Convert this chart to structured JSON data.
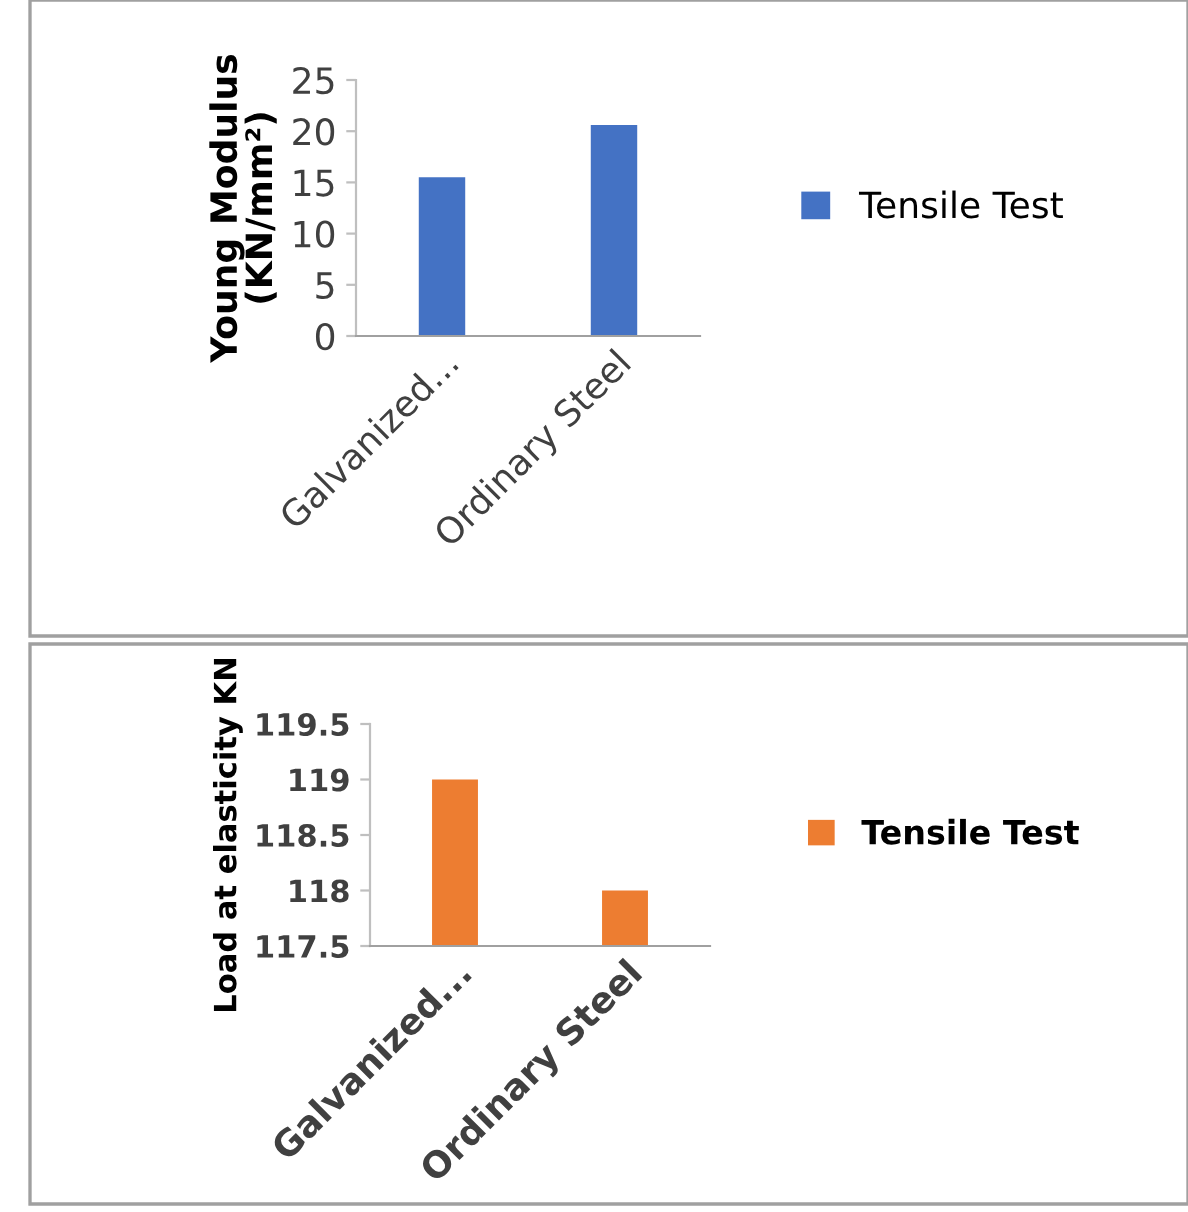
{
  "chart_data": [
    {
      "type": "bar",
      "ylabel": "Young Modulus\n(KN/mm²)",
      "categories": [
        "Galvanized...",
        "Ordinary Steel"
      ],
      "series": [
        {
          "name": "Tensile Test",
          "color": "#4472c4",
          "values": [
            15.5,
            20.6
          ]
        }
      ],
      "ylim": [
        0,
        25
      ],
      "yticks": [
        0,
        5,
        10,
        15,
        20,
        25
      ],
      "grid": false,
      "legend": "right"
    },
    {
      "type": "bar",
      "ylabel": "Load at elasticity KN",
      "categories": [
        "Galvanized...",
        "Ordinary Steel"
      ],
      "series": [
        {
          "name": "Tensile Test",
          "color": "#ed7d31",
          "values": [
            119,
            118
          ]
        }
      ],
      "ylim": [
        117.5,
        119.5
      ],
      "yticks": [
        117.5,
        118,
        118.5,
        119,
        119.5
      ],
      "grid": false,
      "legend": "right"
    }
  ]
}
